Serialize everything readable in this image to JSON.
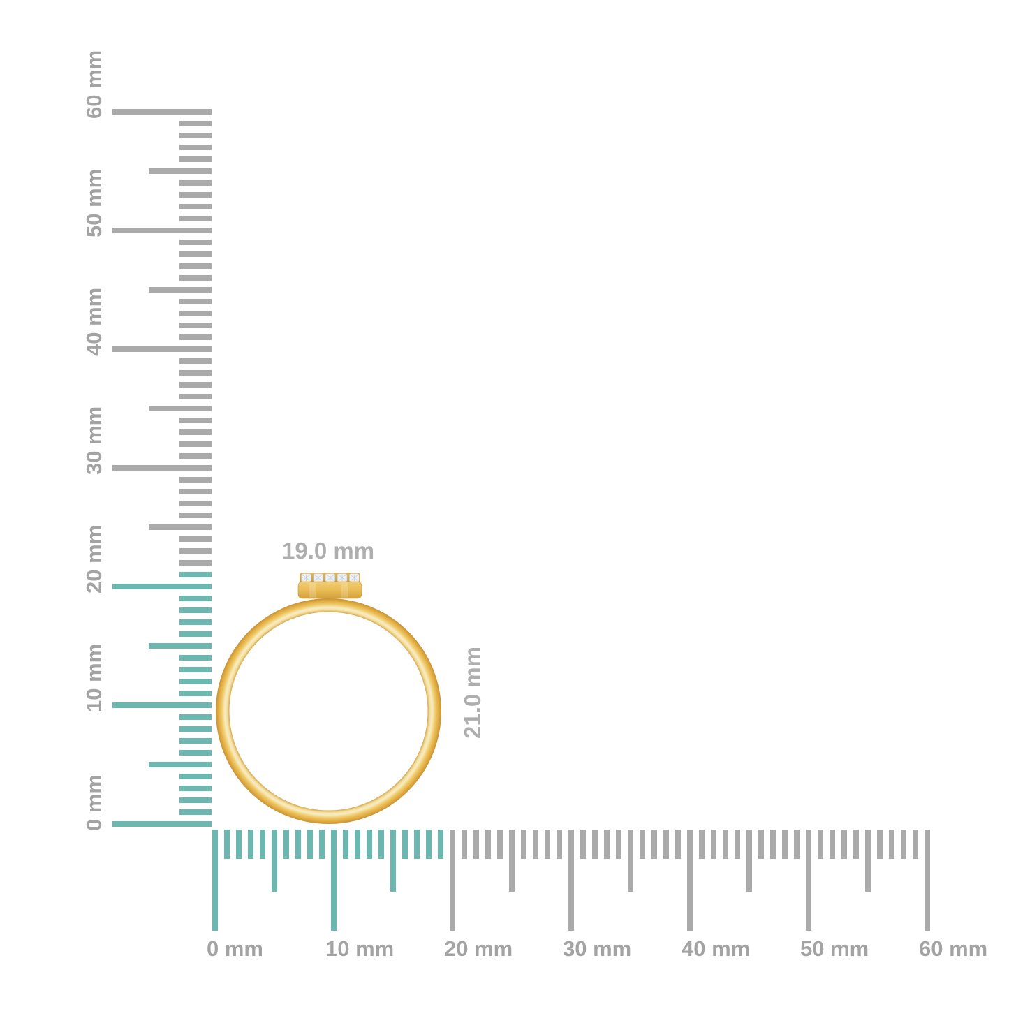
{
  "background_color": "#ffffff",
  "unit": "mm",
  "rulers": {
    "vertical": {
      "side": "left",
      "range_mm": [
        0,
        60
      ],
      "minor_step_mm": 1,
      "medium_step_mm": 5,
      "major_step_mm": 10,
      "tick_labels": [
        "0 mm",
        "10 mm",
        "20 mm",
        "30 mm",
        "40 mm",
        "50 mm",
        "60 mm"
      ],
      "highlight_extent_mm": 21,
      "highlight_color": "#6cb8b0",
      "tick_color": "#aaaaaa",
      "label_color": "#a3a3a3"
    },
    "horizontal": {
      "side": "bottom",
      "range_mm": [
        0,
        60
      ],
      "minor_step_mm": 1,
      "medium_step_mm": 5,
      "major_step_mm": 10,
      "tick_labels": [
        "0 mm",
        "10 mm",
        "20 mm",
        "30 mm",
        "40 mm",
        "50 mm",
        "60 mm"
      ],
      "highlight_extent_mm": 19,
      "highlight_color": "#6cb8b0",
      "tick_color": "#aaaaaa",
      "label_color": "#a3a3a3"
    }
  },
  "ring": {
    "width_label": "19.0 mm",
    "height_label": "21.0 mm",
    "label_color": "#aeaeae",
    "stone_count": 5,
    "colors": {
      "gold_dark": "#c6923a",
      "gold_deep": "#dfa83e",
      "gold_mid": "#eec763",
      "gold_pale": "#f8ecc1",
      "gold_inner_rim": "#d8ab52",
      "bezel_top": "#f0cd74",
      "bezel_mid": "#eabe57",
      "bezel_bottom": "#d2a03c",
      "diamond": "#eef0f2",
      "diamond_edge": "#bcc3ca",
      "diamond_facet": "#c6ccd4"
    }
  }
}
